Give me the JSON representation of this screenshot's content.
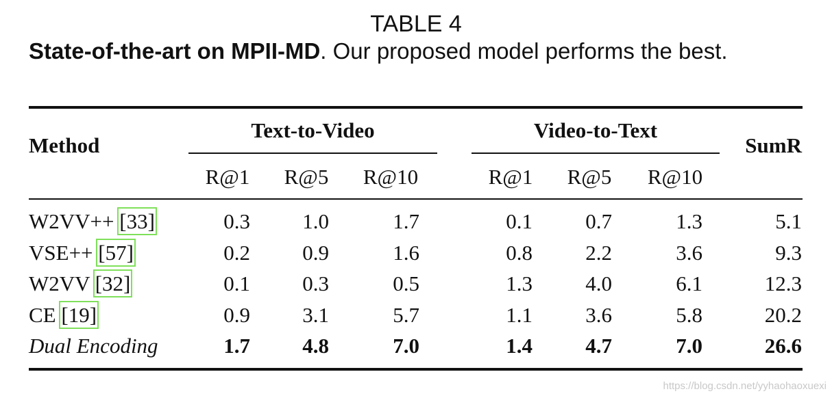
{
  "caption": {
    "label": "TABLE 4",
    "title_bold": "State-of-the-art on MPII-MD",
    "title_rest": ". Our proposed model performs the best."
  },
  "table": {
    "method_header": "Method",
    "groups": [
      "Text-to-Video",
      "Video-to-Text"
    ],
    "sum_header": "SumR",
    "subheaders": [
      "R@1",
      "R@5",
      "R@10",
      "R@1",
      "R@5",
      "R@10"
    ],
    "rows": [
      {
        "method": "W2VV++",
        "ref": "[33]",
        "values": [
          "0.3",
          "1.0",
          "1.7",
          "0.1",
          "0.7",
          "1.3",
          "5.1"
        ]
      },
      {
        "method": "VSE++",
        "ref": "[57]",
        "values": [
          "0.2",
          "0.9",
          "1.6",
          "0.8",
          "2.2",
          "3.6",
          "9.3"
        ]
      },
      {
        "method": "W2VV",
        "ref": "[32]",
        "values": [
          "0.1",
          "0.3",
          "0.5",
          "1.3",
          "4.0",
          "6.1",
          "12.3"
        ]
      },
      {
        "method": "CE",
        "ref": "[19]",
        "values": [
          "0.9",
          "3.1",
          "5.7",
          "1.1",
          "3.6",
          "5.8",
          "20.2"
        ]
      },
      {
        "method": "Dual Encoding",
        "values": [
          "1.7",
          "4.8",
          "7.0",
          "1.4",
          "4.7",
          "7.0",
          "26.6"
        ]
      }
    ]
  },
  "watermark": "https://blog.csdn.net/yyhaohaoxuexi"
}
